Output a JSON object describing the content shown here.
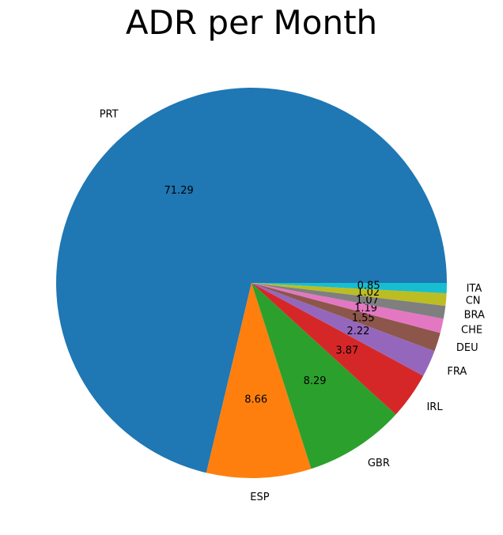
{
  "chart_data": {
    "type": "pie",
    "title": "ADR per Month",
    "categories": [
      "PRT",
      "ESP",
      "GBR",
      "IRL",
      "FRA",
      "DEU",
      "CHE",
      "BRA",
      "CN",
      "ITA"
    ],
    "values": [
      71.29,
      8.66,
      8.29,
      3.87,
      2.22,
      1.55,
      1.19,
      1.07,
      1.02,
      0.85
    ],
    "value_labels": [
      "71.29",
      "8.66",
      "8.29",
      "3.87",
      "2.22",
      "1.55",
      "1.19",
      "1.07",
      "1.02",
      "0.85"
    ],
    "colors": [
      "#1f77b4",
      "#ff7f0e",
      "#2ca02c",
      "#d62728",
      "#9467bd",
      "#8c564b",
      "#e377c2",
      "#7f7f7f",
      "#bcbd22",
      "#17becf"
    ],
    "start_angle_deg": 0,
    "direction": "counterclockwise",
    "legend": "none"
  }
}
